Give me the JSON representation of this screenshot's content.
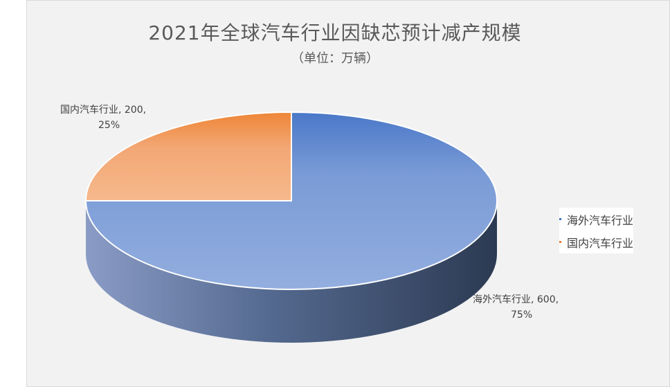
{
  "chart_data": {
    "type": "pie",
    "title": "2021年全球汽车行业因缺芯预计减产规模",
    "subtitle": "（单位：万辆）",
    "categories": [
      "海外汽车行业",
      "国内汽车行业"
    ],
    "values": [
      600,
      200
    ],
    "percent_labels": [
      "75%",
      "25%"
    ],
    "colors": [
      "#4472c4",
      "#ed7d31"
    ],
    "legend_position": "right",
    "data_labels": [
      {
        "line1": "海外汽车行业, 600,",
        "line2": "75%"
      },
      {
        "line1": "国内汽车行业, 200,",
        "line2": "25%"
      }
    ]
  }
}
